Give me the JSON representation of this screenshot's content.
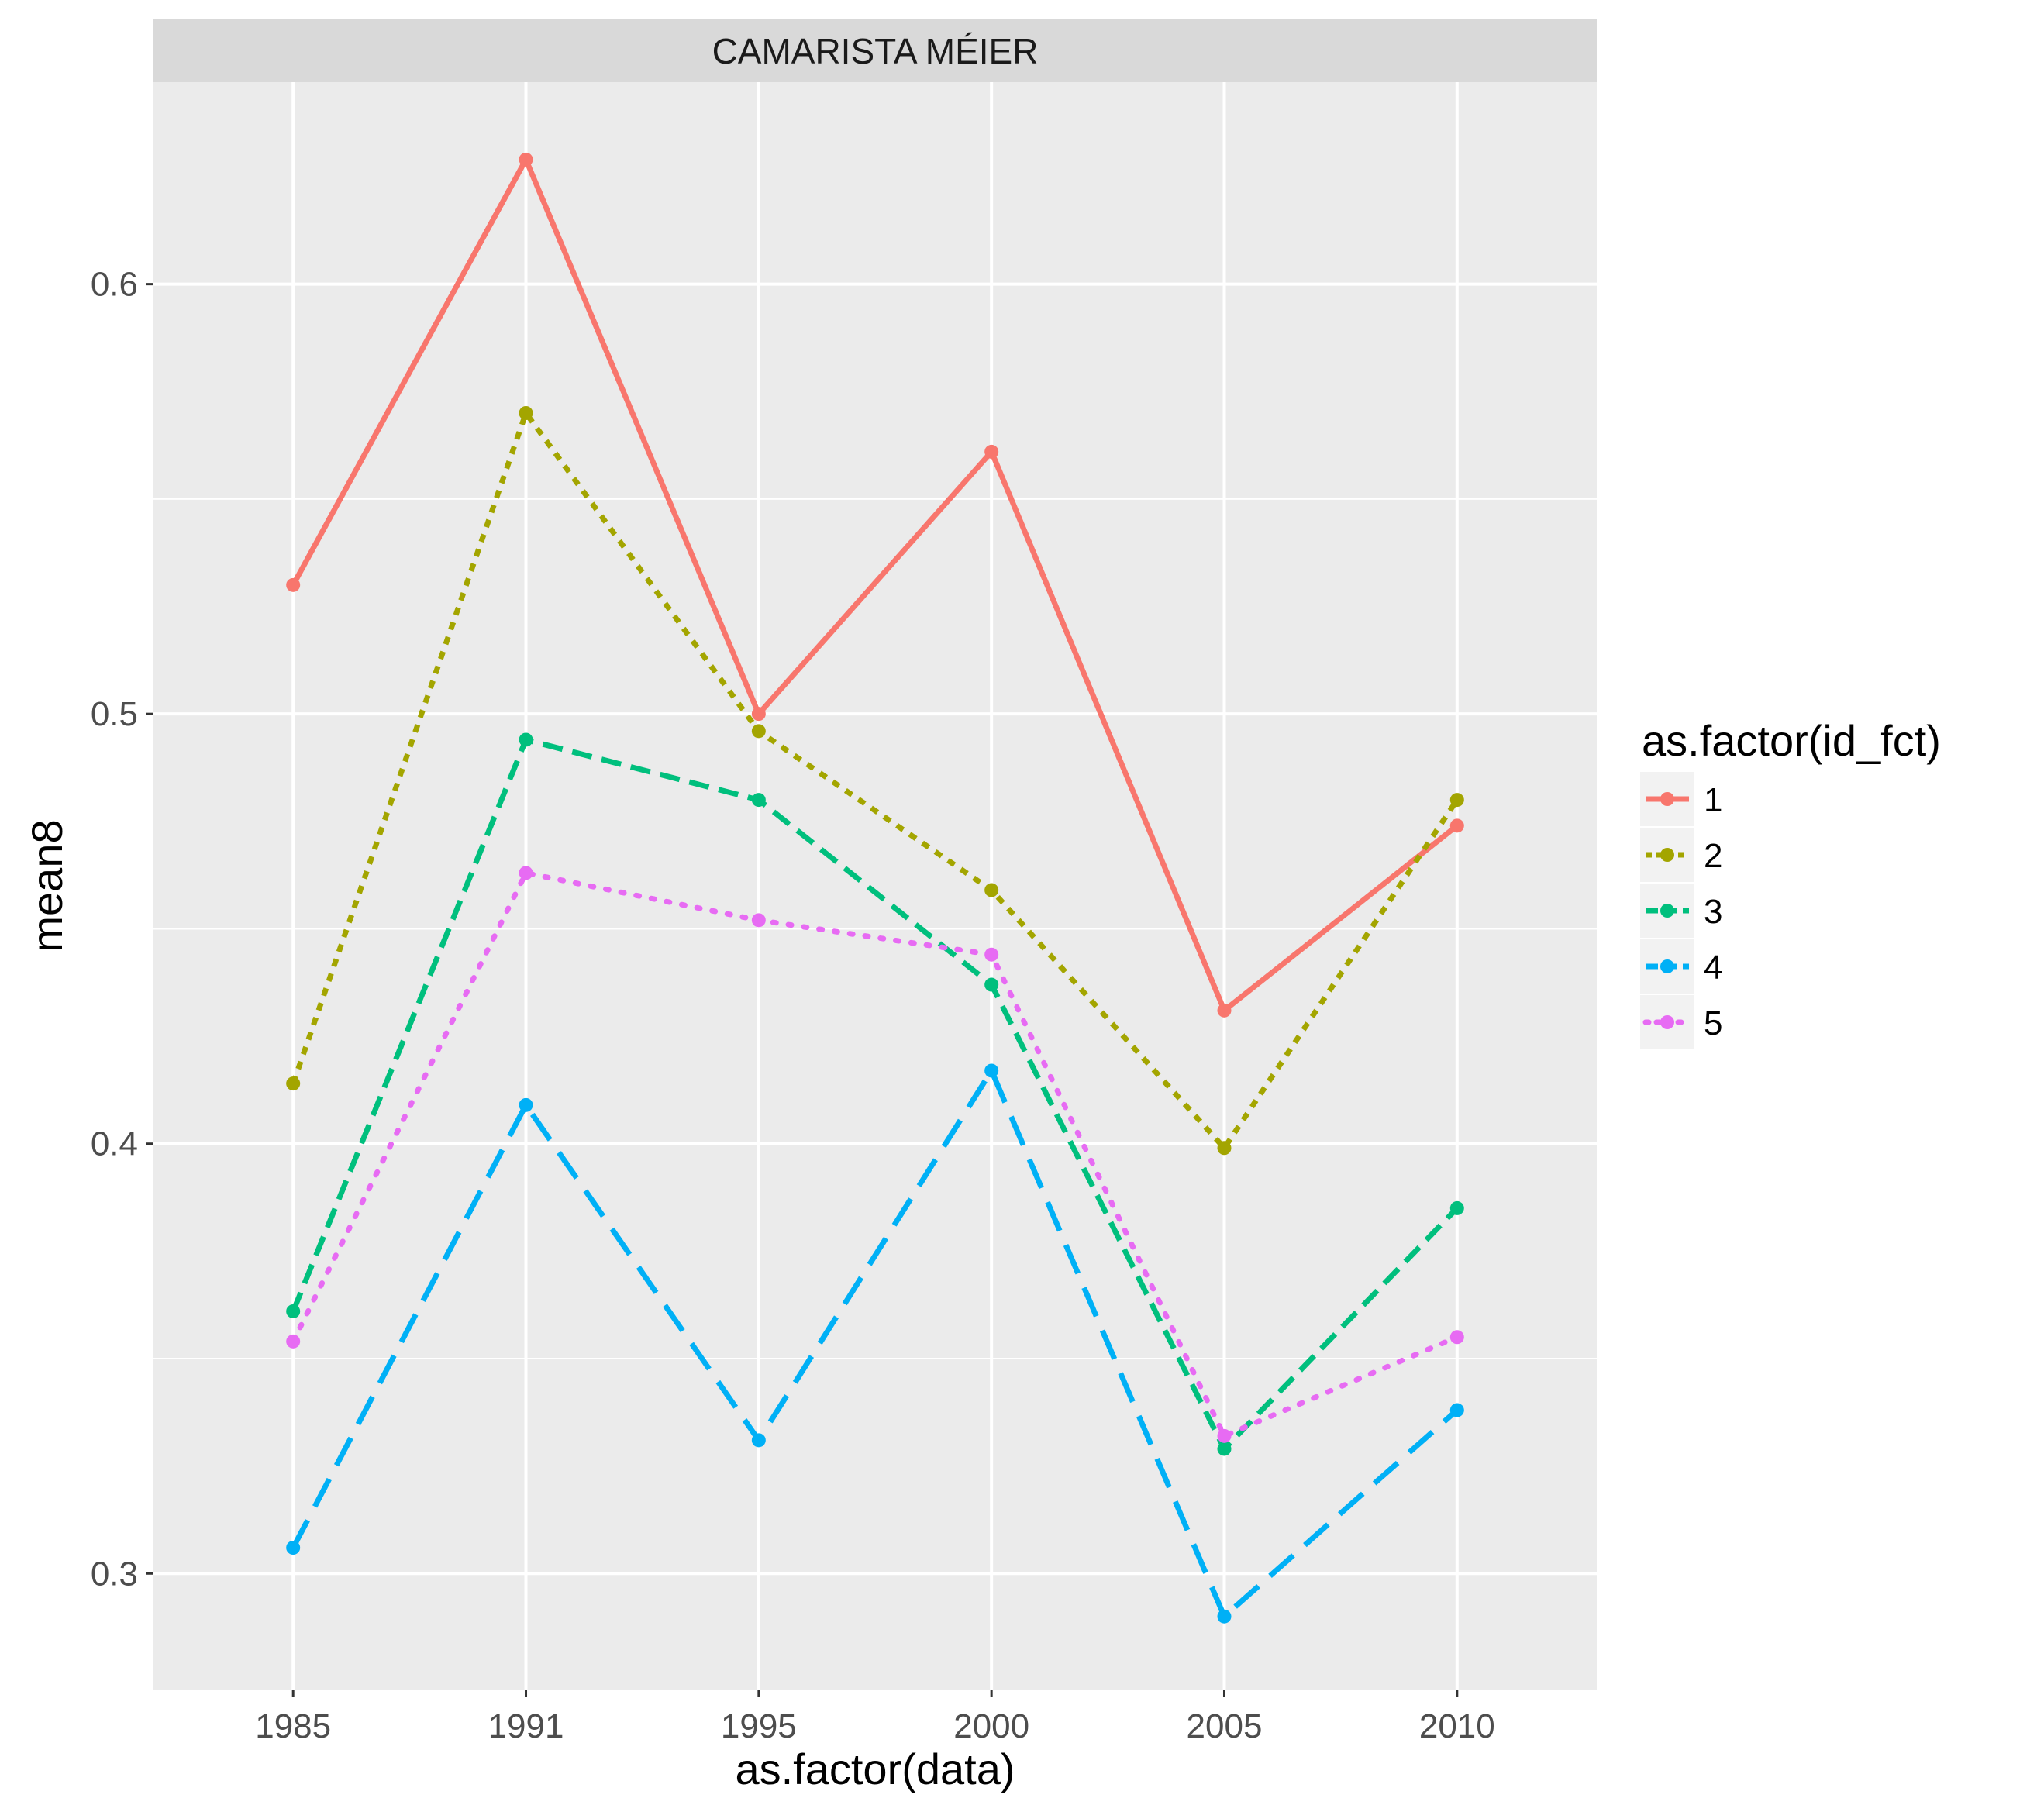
{
  "chart_data": {
    "type": "line",
    "facet_label": "CAMARISTA MÉIER",
    "xlabel": "as.factor(data)",
    "ylabel": "mean8",
    "categories": [
      "1985",
      "1991",
      "1995",
      "2000",
      "2005",
      "2010"
    ],
    "ylim": [
      0.273,
      0.647
    ],
    "yticks": [
      0.3,
      0.4,
      0.5,
      0.6
    ],
    "ytick_labels": [
      "0.3",
      "0.4",
      "0.5",
      "0.6"
    ],
    "grid": true,
    "legend": {
      "title": "as.factor(id_fct)",
      "position": "right"
    },
    "series": [
      {
        "name": "1",
        "color": "#F8766D",
        "dash": "solid",
        "values": [
          0.53,
          0.629,
          0.5,
          0.561,
          0.431,
          0.474
        ]
      },
      {
        "name": "2",
        "color": "#A3A500",
        "dash": "dotted",
        "values": [
          0.414,
          0.57,
          0.496,
          0.459,
          0.399,
          0.48
        ]
      },
      {
        "name": "3",
        "color": "#00BF7D",
        "dash": "dashed",
        "values": [
          0.361,
          0.494,
          0.48,
          0.437,
          0.329,
          0.385
        ]
      },
      {
        "name": "4",
        "color": "#00B0F6",
        "dash": "longdash",
        "values": [
          0.306,
          0.409,
          0.331,
          0.417,
          0.29,
          0.338
        ]
      },
      {
        "name": "5",
        "color": "#E76BF3",
        "dash": "dotted-fine",
        "values": [
          0.354,
          0.463,
          0.452,
          0.444,
          0.332,
          0.355
        ]
      }
    ]
  }
}
